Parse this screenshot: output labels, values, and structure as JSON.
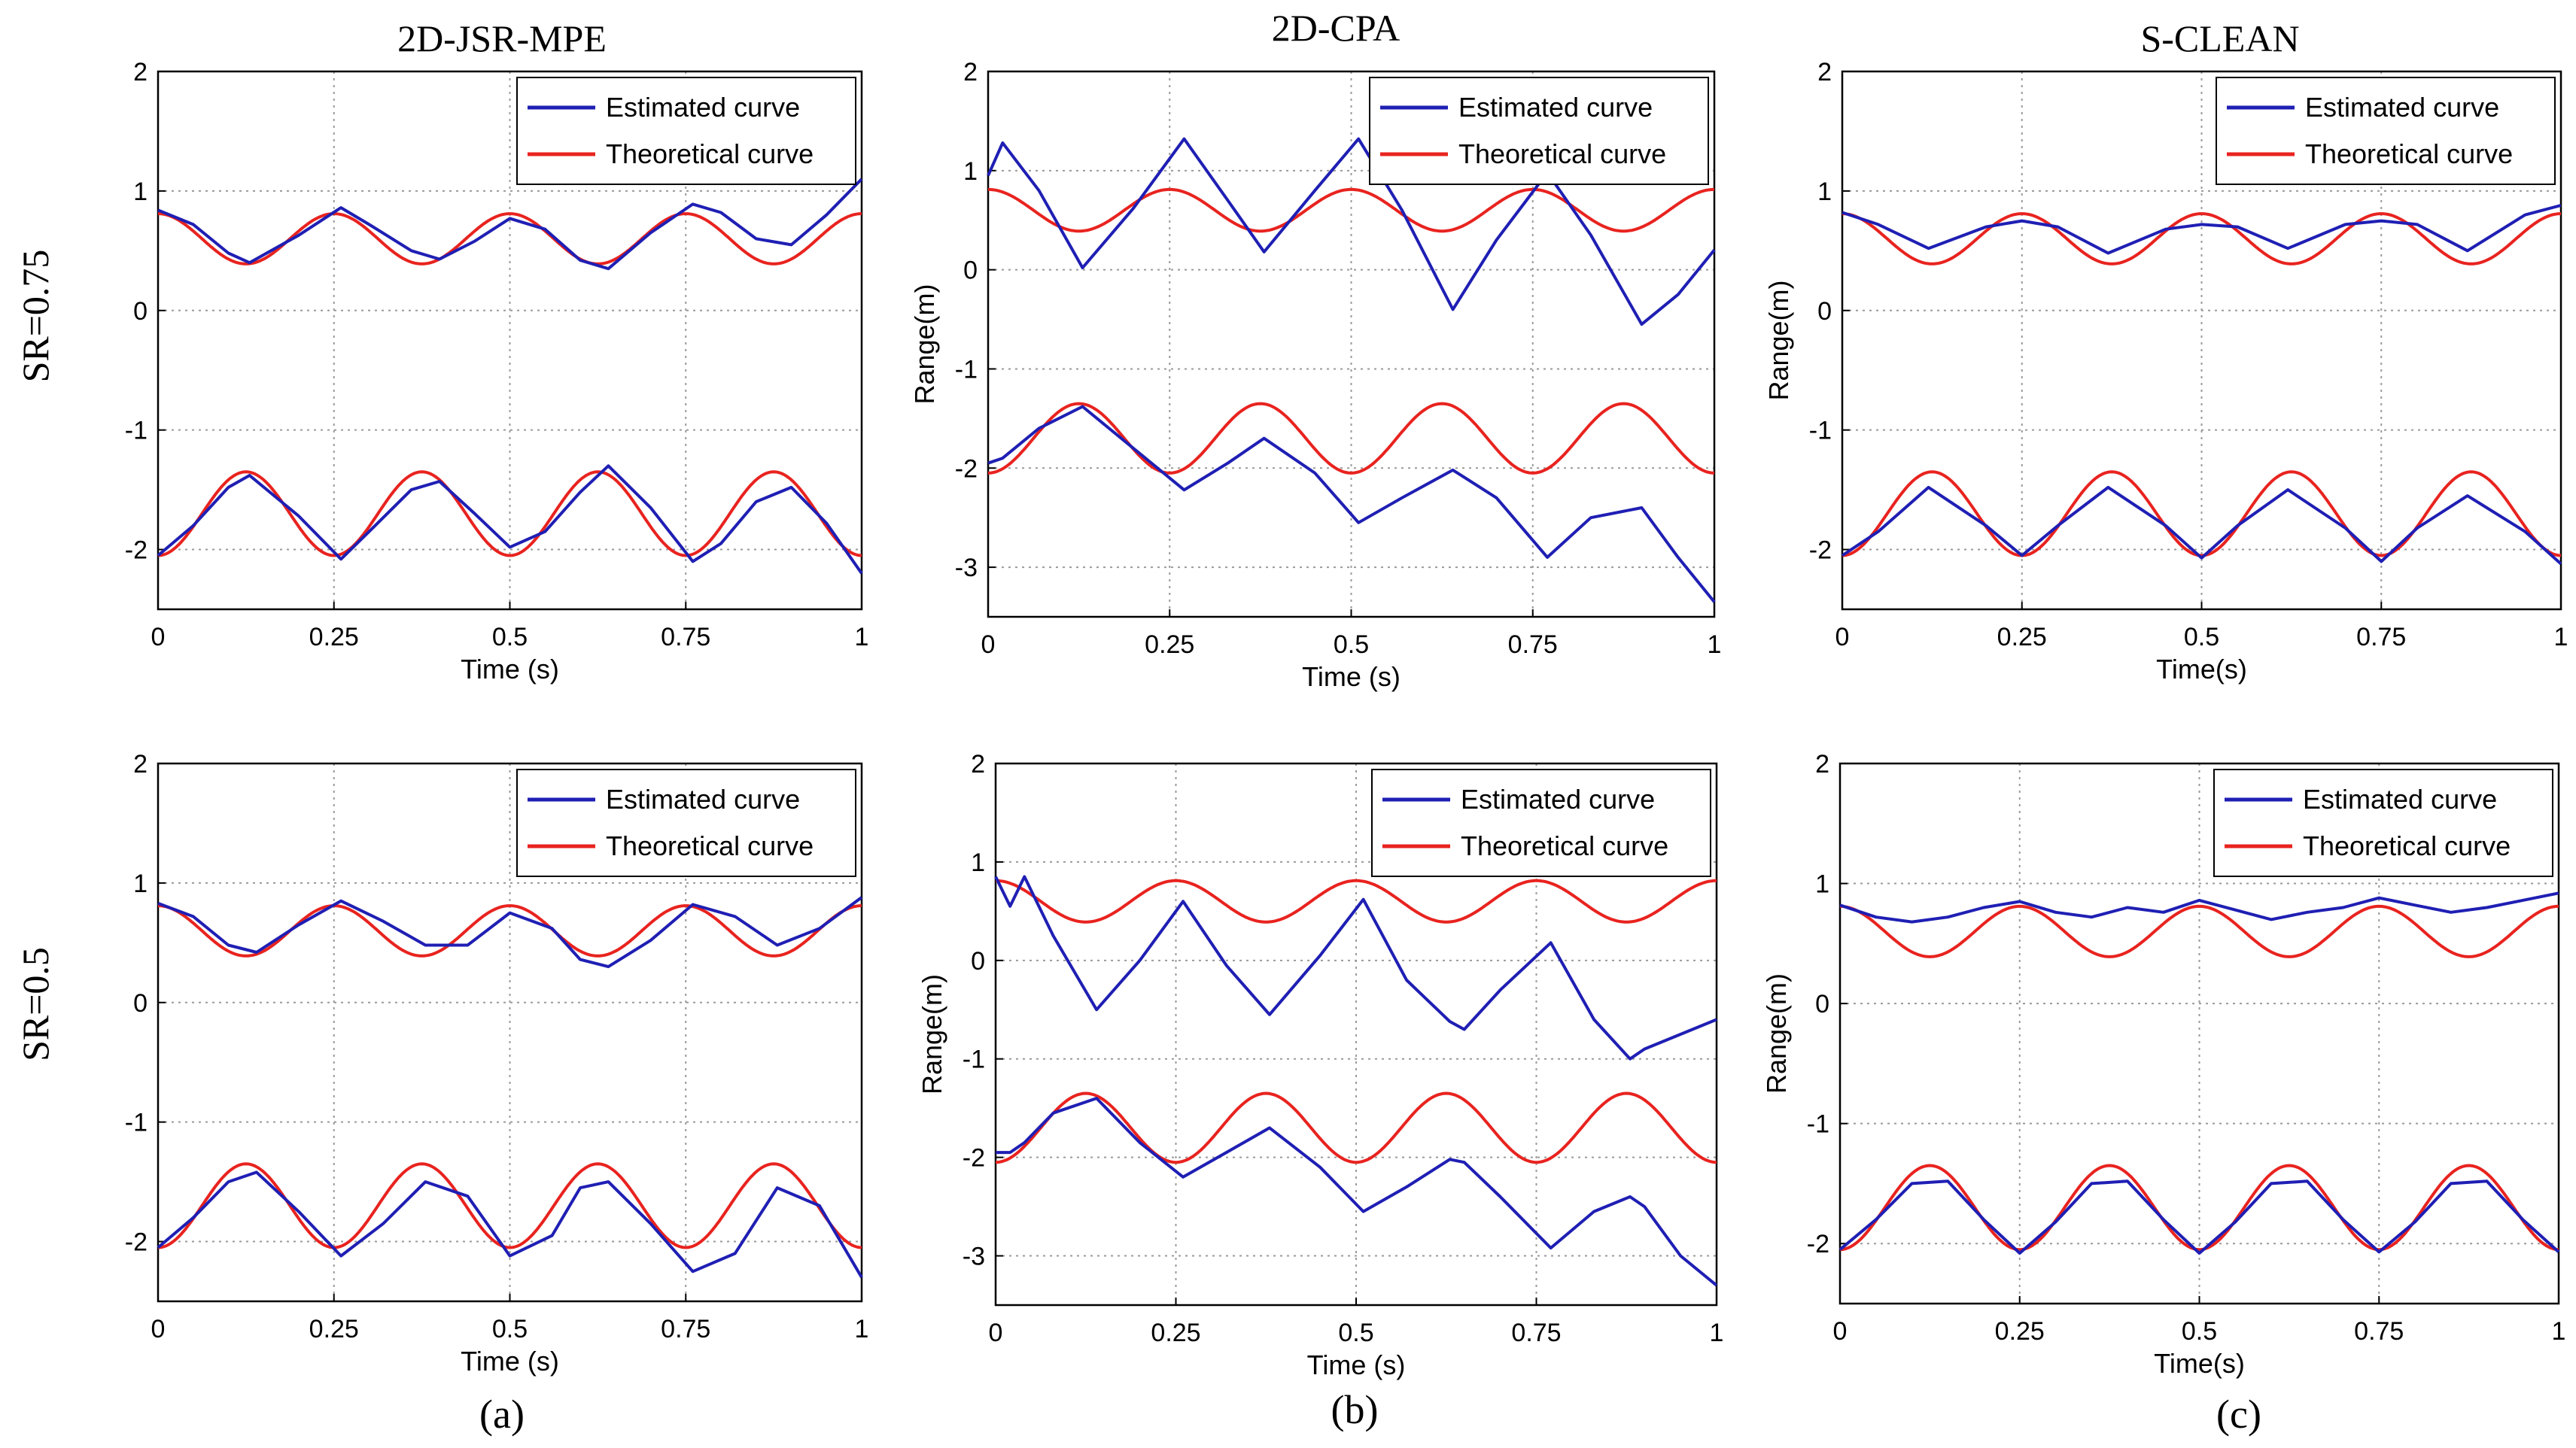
{
  "figure": {
    "column_titles": [
      "2D-JSR-MPE",
      "2D-CPA",
      "S-CLEAN"
    ],
    "row_labels": [
      "SR=0.75",
      "SR=0.5"
    ],
    "panel_labels": [
      "(a)",
      "(b)",
      "(c)"
    ],
    "colors": {
      "estimated": "#1f1fb4",
      "theoretical": "#e8231f",
      "grid": "#9a9a9a",
      "axis": "#000000"
    }
  },
  "chart_data": [
    {
      "id": "a1",
      "type": "line",
      "column": "2D-JSR-MPE",
      "row": "SR=0.75",
      "xlabel": "Time (s)",
      "ylabel": "",
      "xlim": [
        0,
        1
      ],
      "ylim": [
        -2.5,
        2
      ],
      "xticks": [
        0,
        0.25,
        0.5,
        0.75,
        1
      ],
      "xtick_labels": [
        "0",
        "0.25",
        "0.5",
        "0.75",
        "1"
      ],
      "yticks": [
        -2,
        -1,
        0,
        1,
        2
      ],
      "ytick_labels": [
        "-2",
        "-1",
        "0",
        "1",
        "2"
      ],
      "legend": [
        "Estimated curve",
        "Theoretical curve"
      ],
      "legend_position": "top-right",
      "grid": true,
      "theoretical": {
        "upper": {
          "center": 0.6,
          "amplitude": 0.21,
          "period": 0.25,
          "phase": 0,
          "sign": 1
        },
        "lower": {
          "center": -1.7,
          "amplitude": 0.35,
          "period": 0.25,
          "phase": 0,
          "sign": -1
        }
      },
      "estimated": {
        "x": [
          0,
          0.05,
          0.1,
          0.13,
          0.2,
          0.26,
          0.3,
          0.36,
          0.4,
          0.45,
          0.5,
          0.55,
          0.6,
          0.64,
          0.7,
          0.76,
          0.8,
          0.85,
          0.9,
          0.95,
          1
        ],
        "upper": [
          0.84,
          0.72,
          0.48,
          0.4,
          0.63,
          0.86,
          0.72,
          0.5,
          0.43,
          0.58,
          0.77,
          0.68,
          0.42,
          0.35,
          0.65,
          0.89,
          0.82,
          0.6,
          0.55,
          0.8,
          1.1
        ],
        "lower": [
          -2.05,
          -1.8,
          -1.48,
          -1.38,
          -1.72,
          -2.08,
          -1.85,
          -1.5,
          -1.43,
          -1.7,
          -1.98,
          -1.85,
          -1.52,
          -1.3,
          -1.65,
          -2.1,
          -1.95,
          -1.6,
          -1.48,
          -1.78,
          -2.2
        ]
      }
    },
    {
      "id": "b1",
      "type": "line",
      "column": "2D-CPA",
      "row": "SR=0.75",
      "xlabel": "Time (s)",
      "ylabel": "Range(m)",
      "xlim": [
        0,
        1
      ],
      "ylim": [
        -3.5,
        2
      ],
      "xticks": [
        0,
        0.25,
        0.5,
        0.75,
        1
      ],
      "xtick_labels": [
        "0",
        "0.25",
        "0.5",
        "0.75",
        "1"
      ],
      "yticks": [
        -3,
        -2,
        -1,
        0,
        1,
        2
      ],
      "ytick_labels": [
        "-3",
        "-2",
        "-1",
        "0",
        "1",
        "2"
      ],
      "legend": [
        "Estimated curve",
        "Theoretical curve"
      ],
      "legend_position": "top-right",
      "grid": true,
      "theoretical": {
        "upper": {
          "center": 0.6,
          "amplitude": 0.21,
          "period": 0.25,
          "phase": 0,
          "sign": 1
        },
        "lower": {
          "center": -1.7,
          "amplitude": 0.35,
          "period": 0.25,
          "phase": 0,
          "sign": -1
        }
      },
      "estimated": {
        "x": [
          0,
          0.02,
          0.07,
          0.13,
          0.2,
          0.27,
          0.33,
          0.38,
          0.45,
          0.51,
          0.57,
          0.64,
          0.7,
          0.77,
          0.83,
          0.9,
          0.95,
          1
        ],
        "upper": [
          0.95,
          1.28,
          0.8,
          0.02,
          0.62,
          1.32,
          0.7,
          0.18,
          0.8,
          1.32,
          0.6,
          -0.4,
          0.3,
          0.98,
          0.35,
          -0.55,
          -0.25,
          0.2
        ],
        "lower": [
          -1.95,
          -1.9,
          -1.6,
          -1.38,
          -1.8,
          -2.22,
          -1.95,
          -1.7,
          -2.05,
          -2.55,
          -2.3,
          -2.02,
          -2.3,
          -2.9,
          -2.5,
          -2.4,
          -2.9,
          -3.35
        ]
      }
    },
    {
      "id": "c1",
      "type": "line",
      "column": "S-CLEAN",
      "row": "SR=0.75",
      "xlabel": "Time(s)",
      "ylabel": "Range(m)",
      "xlim": [
        0,
        1
      ],
      "ylim": [
        -2.5,
        2
      ],
      "xticks": [
        0,
        0.25,
        0.5,
        0.75,
        1
      ],
      "xtick_labels": [
        "0",
        "0.25",
        "0.5",
        "0.75",
        "1"
      ],
      "yticks": [
        -2,
        -1,
        0,
        1,
        2
      ],
      "ytick_labels": [
        "-2",
        "-1",
        "0",
        "1",
        "2"
      ],
      "legend": [
        "Estimated curve",
        "Theoretical curve"
      ],
      "legend_position": "top-right",
      "grid": true,
      "theoretical": {
        "upper": {
          "center": 0.6,
          "amplitude": 0.21,
          "period": 0.25,
          "phase": 0,
          "sign": 1
        },
        "lower": {
          "center": -1.7,
          "amplitude": 0.35,
          "period": 0.25,
          "phase": 0,
          "sign": -1
        }
      },
      "estimated": {
        "x": [
          0,
          0.05,
          0.12,
          0.2,
          0.25,
          0.3,
          0.37,
          0.45,
          0.5,
          0.55,
          0.62,
          0.7,
          0.75,
          0.8,
          0.87,
          0.95,
          1
        ],
        "upper": [
          0.82,
          0.72,
          0.52,
          0.7,
          0.75,
          0.7,
          0.48,
          0.68,
          0.72,
          0.7,
          0.52,
          0.72,
          0.75,
          0.72,
          0.5,
          0.8,
          0.88
        ],
        "lower": [
          -2.05,
          -1.85,
          -1.48,
          -1.8,
          -2.05,
          -1.8,
          -1.48,
          -1.8,
          -2.07,
          -1.8,
          -1.5,
          -1.82,
          -2.1,
          -1.82,
          -1.55,
          -1.85,
          -2.12
        ]
      }
    },
    {
      "id": "a2",
      "type": "line",
      "column": "2D-JSR-MPE",
      "row": "SR=0.5",
      "xlabel": "Time (s)",
      "ylabel": "",
      "xlim": [
        0,
        1
      ],
      "ylim": [
        -2.5,
        2
      ],
      "xticks": [
        0,
        0.25,
        0.5,
        0.75,
        1
      ],
      "xtick_labels": [
        "0",
        "0.25",
        "0.5",
        "0.75",
        "1"
      ],
      "yticks": [
        -2,
        -1,
        0,
        1,
        2
      ],
      "ytick_labels": [
        "-2",
        "-1",
        "0",
        "1",
        "2"
      ],
      "legend": [
        "Estimated curve",
        "Theoretical curve"
      ],
      "legend_position": "top-right",
      "grid": true,
      "theoretical": {
        "upper": {
          "center": 0.6,
          "amplitude": 0.21,
          "period": 0.25,
          "phase": 0,
          "sign": 1
        },
        "lower": {
          "center": -1.7,
          "amplitude": 0.35,
          "period": 0.25,
          "phase": 0,
          "sign": -1
        }
      },
      "estimated": {
        "x": [
          0,
          0.05,
          0.1,
          0.14,
          0.2,
          0.26,
          0.32,
          0.38,
          0.44,
          0.5,
          0.56,
          0.6,
          0.64,
          0.7,
          0.76,
          0.82,
          0.88,
          0.94,
          1
        ],
        "upper": [
          0.83,
          0.72,
          0.48,
          0.42,
          0.65,
          0.85,
          0.68,
          0.48,
          0.48,
          0.75,
          0.62,
          0.36,
          0.3,
          0.52,
          0.82,
          0.72,
          0.48,
          0.62,
          0.88
        ],
        "lower": [
          -2.05,
          -1.8,
          -1.5,
          -1.42,
          -1.75,
          -2.12,
          -1.85,
          -1.5,
          -1.62,
          -2.12,
          -1.95,
          -1.55,
          -1.5,
          -1.85,
          -2.25,
          -2.1,
          -1.55,
          -1.7,
          -2.3
        ]
      }
    },
    {
      "id": "b2",
      "type": "line",
      "column": "2D-CPA",
      "row": "SR=0.5",
      "xlabel": "Time (s)",
      "ylabel": "Range(m)",
      "xlim": [
        0,
        1
      ],
      "ylim": [
        -3.5,
        2
      ],
      "xticks": [
        0,
        0.25,
        0.5,
        0.75,
        1
      ],
      "xtick_labels": [
        "0",
        "0.25",
        "0.5",
        "0.75",
        "1"
      ],
      "yticks": [
        -3,
        -2,
        -1,
        0,
        1,
        2
      ],
      "ytick_labels": [
        "-3",
        "-2",
        "-1",
        "0",
        "1",
        "2"
      ],
      "legend": [
        "Estimated curve",
        "Theoretical curve"
      ],
      "legend_position": "top-right",
      "grid": true,
      "theoretical": {
        "upper": {
          "center": 0.6,
          "amplitude": 0.21,
          "period": 0.25,
          "phase": 0,
          "sign": 1
        },
        "lower": {
          "center": -1.7,
          "amplitude": 0.35,
          "period": 0.25,
          "phase": 0,
          "sign": -1
        }
      },
      "estimated": {
        "x": [
          0,
          0.02,
          0.04,
          0.08,
          0.14,
          0.2,
          0.26,
          0.32,
          0.38,
          0.45,
          0.51,
          0.57,
          0.63,
          0.65,
          0.7,
          0.77,
          0.83,
          0.88,
          0.9,
          0.95,
          1
        ],
        "upper": [
          0.85,
          0.55,
          0.85,
          0.25,
          -0.5,
          0.0,
          0.6,
          -0.05,
          -0.55,
          0.05,
          0.62,
          -0.2,
          -0.62,
          -0.7,
          -0.3,
          0.18,
          -0.6,
          -1.0,
          -0.9,
          -0.75,
          -0.6
        ],
        "lower": [
          -1.95,
          -1.95,
          -1.85,
          -1.55,
          -1.4,
          -1.85,
          -2.2,
          -1.95,
          -1.7,
          -2.1,
          -2.55,
          -2.3,
          -2.02,
          -2.05,
          -2.4,
          -2.92,
          -2.55,
          -2.4,
          -2.5,
          -3.0,
          -3.3
        ]
      }
    },
    {
      "id": "c2",
      "type": "line",
      "column": "S-CLEAN",
      "row": "SR=0.5",
      "xlabel": "Time(s)",
      "ylabel": "Range(m)",
      "xlim": [
        0,
        1
      ],
      "ylim": [
        -2.5,
        2
      ],
      "xticks": [
        0,
        0.25,
        0.5,
        0.75,
        1
      ],
      "xtick_labels": [
        "0",
        "0.25",
        "0.5",
        "0.75",
        "1"
      ],
      "yticks": [
        -2,
        -1,
        0,
        1,
        2
      ],
      "ytick_labels": [
        "-2",
        "-1",
        "0",
        "1",
        "2"
      ],
      "legend": [
        "Estimated curve",
        "Theoretical curve"
      ],
      "legend_position": "top-right",
      "grid": true,
      "theoretical": {
        "upper": {
          "center": 0.6,
          "amplitude": 0.21,
          "period": 0.25,
          "phase": 0,
          "sign": 1
        },
        "lower": {
          "center": -1.7,
          "amplitude": 0.35,
          "period": 0.25,
          "phase": 0,
          "sign": -1
        }
      },
      "estimated": {
        "x": [
          0,
          0.05,
          0.1,
          0.15,
          0.2,
          0.25,
          0.3,
          0.35,
          0.4,
          0.45,
          0.5,
          0.55,
          0.6,
          0.65,
          0.7,
          0.75,
          0.8,
          0.85,
          0.9,
          0.95,
          1
        ],
        "upper": [
          0.82,
          0.72,
          0.68,
          0.72,
          0.8,
          0.85,
          0.76,
          0.72,
          0.8,
          0.76,
          0.86,
          0.78,
          0.7,
          0.76,
          0.8,
          0.88,
          0.82,
          0.76,
          0.8,
          0.86,
          0.92
        ],
        "lower": [
          -2.05,
          -1.8,
          -1.5,
          -1.48,
          -1.8,
          -2.08,
          -1.82,
          -1.5,
          -1.48,
          -1.8,
          -2.08,
          -1.82,
          -1.5,
          -1.48,
          -1.8,
          -2.07,
          -1.82,
          -1.5,
          -1.48,
          -1.8,
          -2.07
        ]
      }
    }
  ]
}
